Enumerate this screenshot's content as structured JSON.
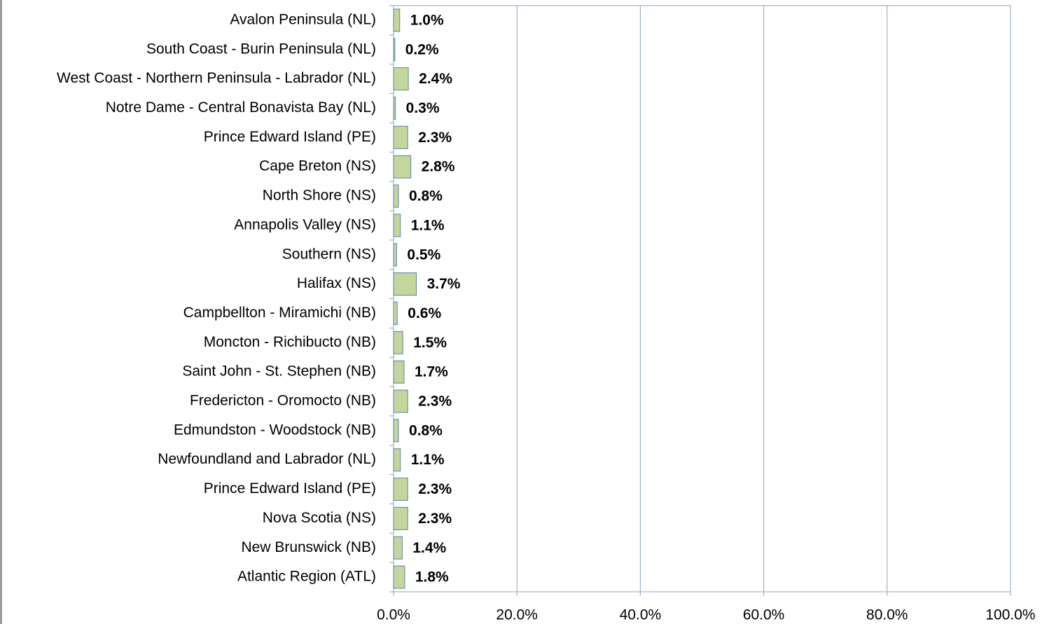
{
  "chart_data": {
    "type": "bar",
    "orientation": "horizontal",
    "categories": [
      "Avalon Peninsula (NL)",
      "South Coast - Burin Peninsula (NL)",
      "West Coast - Northern Peninsula - Labrador (NL)",
      "Notre Dame - Central Bonavista Bay (NL)",
      "Prince Edward Island (PE)",
      "Cape Breton (NS)",
      "North Shore (NS)",
      "Annapolis Valley (NS)",
      "Southern (NS)",
      "Halifax (NS)",
      "Campbellton - Miramichi (NB)",
      "Moncton - Richibucto (NB)",
      "Saint John - St. Stephen (NB)",
      "Fredericton - Oromocto (NB)",
      "Edmundston - Woodstock (NB)",
      "Newfoundland and Labrador (NL)",
      "Prince Edward Island (PE)",
      "Nova Scotia (NS)",
      "New Brunswick (NB)",
      "Atlantic Region (ATL)"
    ],
    "values": [
      1.0,
      0.2,
      2.4,
      0.3,
      2.3,
      2.8,
      0.8,
      1.1,
      0.5,
      3.7,
      0.6,
      1.5,
      1.7,
      2.3,
      0.8,
      1.1,
      2.3,
      2.3,
      1.4,
      1.8
    ],
    "value_labels": [
      "1.0%",
      "0.2%",
      "2.4%",
      "0.3%",
      "2.3%",
      "2.8%",
      "0.8%",
      "1.1%",
      "0.5%",
      "3.7%",
      "0.6%",
      "1.5%",
      "1.7%",
      "2.3%",
      "0.8%",
      "1.1%",
      "2.3%",
      "2.3%",
      "1.4%",
      "1.8%"
    ],
    "color": "#c3d69b",
    "xlim": [
      0,
      100
    ],
    "xticks": [
      {
        "value": 0,
        "label": "0.0%"
      },
      {
        "value": 20,
        "label": "20.0%"
      },
      {
        "value": 40,
        "label": "40.0%"
      },
      {
        "value": 60,
        "label": "60.0%"
      },
      {
        "value": 80,
        "label": "80.0%"
      },
      {
        "value": 100,
        "label": "100.0%"
      }
    ],
    "grid": true
  }
}
